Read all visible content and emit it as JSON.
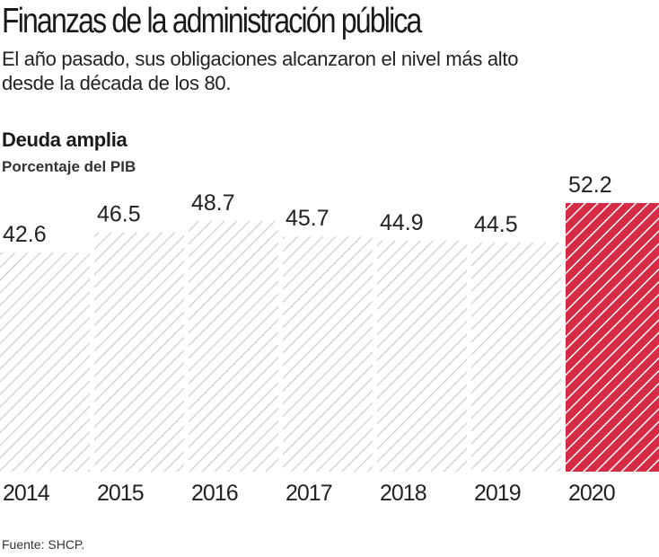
{
  "header": {
    "title": "Finanzas de la administración pública",
    "subtitle_line1": "El año pasado, sus obligaciones alcanzaron el nivel más alto",
    "subtitle_line2": "desde la década de los 80."
  },
  "chart_data": {
    "type": "bar",
    "title": "Deuda amplia",
    "subtitle": "Porcentaje del PIB",
    "categories": [
      "2014",
      "2015",
      "2016",
      "2017",
      "2018",
      "2019",
      "2020"
    ],
    "values": [
      42.6,
      46.5,
      48.7,
      45.7,
      44.9,
      44.5,
      52.2
    ],
    "value_labels": [
      "42.6",
      "46.5",
      "48.7",
      "45.7",
      "44.9",
      "44.5",
      "52.2"
    ],
    "highlight_index": 6,
    "xlabel": "",
    "ylabel": "Porcentaje del PIB",
    "ylim": [
      0,
      52.2
    ],
    "grid": false,
    "colors": {
      "default_hatch": "#c8c8c8",
      "highlight": "#d62b45"
    }
  },
  "footer": {
    "source": "Fuente: SHCP."
  }
}
